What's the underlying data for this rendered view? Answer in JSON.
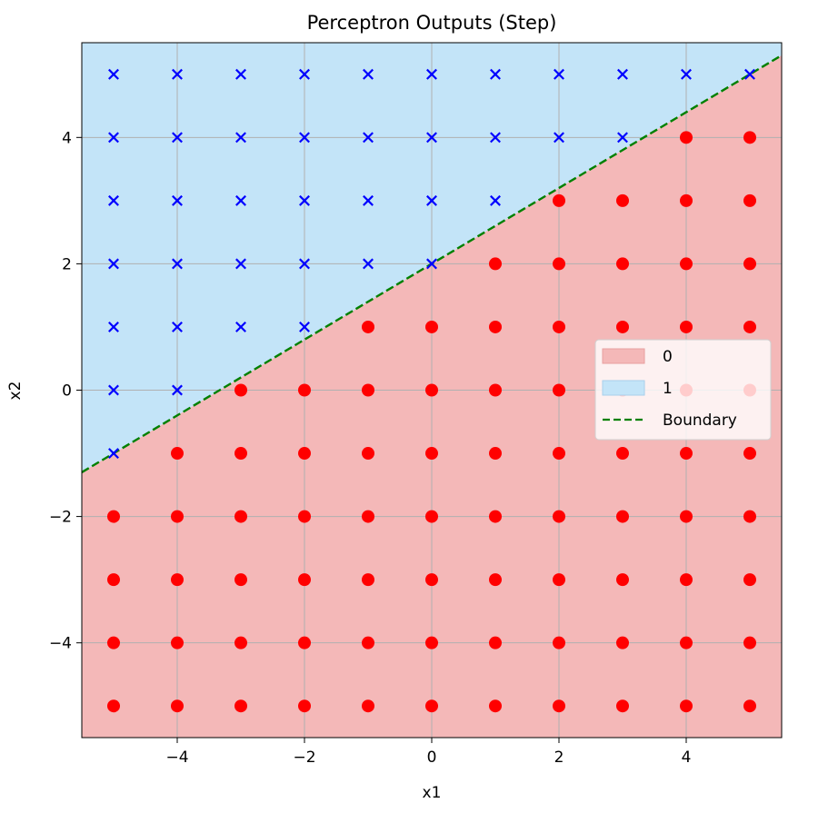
{
  "chart_data": {
    "type": "scatter",
    "title": "Perceptron Outputs (Step)",
    "xlabel": "x1",
    "ylabel": "x2",
    "xlim": [
      -5.5,
      5.5
    ],
    "ylim": [
      -5.5,
      5.5
    ],
    "xticks": [
      -4,
      -2,
      0,
      2,
      4
    ],
    "yticks": [
      -4,
      -2,
      0,
      2,
      4
    ],
    "grid": true,
    "boundary": {
      "slope": 0.6,
      "intercept": 2.0,
      "color": "#008000",
      "style": "dashed"
    },
    "regions": [
      {
        "label": "0",
        "color": "#f4b8b8"
      },
      {
        "label": "1",
        "color": "#c3e4f8"
      }
    ],
    "grid_points": {
      "x": [
        -5,
        -4,
        -3,
        -2,
        -1,
        0,
        1,
        2,
        3,
        4,
        5
      ],
      "y": [
        -5,
        -4,
        -3,
        -2,
        -1,
        0,
        1,
        2,
        3,
        4,
        5
      ]
    },
    "classes": [
      {
        "output": 0,
        "marker": "circle",
        "color": "#ff0000"
      },
      {
        "output": 1,
        "marker": "x",
        "color": "#0000ff"
      }
    ],
    "legend": {
      "placement": "center-right",
      "entries": [
        {
          "label": "0",
          "kind": "patch",
          "color": "#f4b8b8"
        },
        {
          "label": "1",
          "kind": "patch",
          "color": "#c3e4f8"
        },
        {
          "label": "Boundary",
          "kind": "line",
          "color": "#008000"
        }
      ]
    }
  }
}
